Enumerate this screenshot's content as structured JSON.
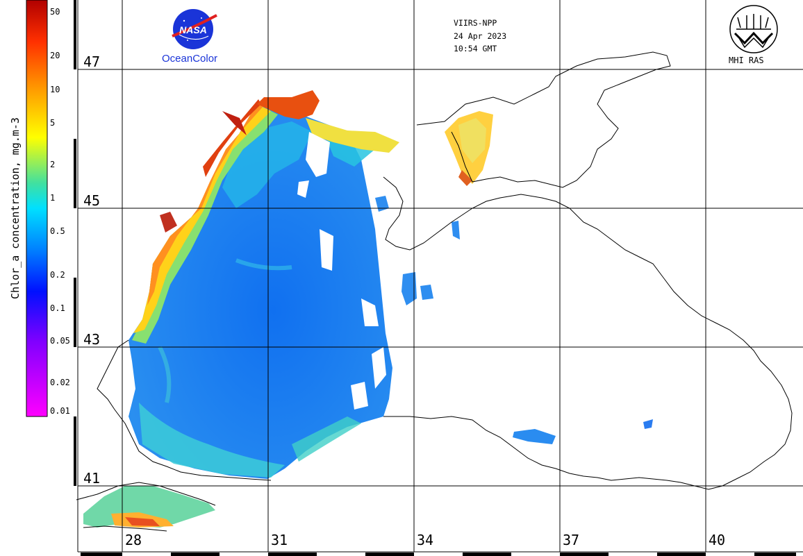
{
  "satellite": {
    "sensor": "VIIRS-NPP",
    "date": "24 Apr 2023",
    "time": "10:54 GMT"
  },
  "logos": {
    "nasa_sub": "OceanColor",
    "mhi": "MHI RAS"
  },
  "colorbar": {
    "title": "Chlor_a concentration, mg.m-3",
    "ticks": [
      "50",
      "20",
      "10",
      "5",
      "2",
      "1",
      "0.5",
      "0.2",
      "0.1",
      "0.05",
      "0.02",
      "0.01"
    ]
  },
  "grid": {
    "lat_labels": [
      "47",
      "45",
      "43",
      "41"
    ],
    "lon_labels": [
      "28",
      "31",
      "34",
      "37",
      "40"
    ]
  },
  "colors": {
    "land": "#ffffff",
    "coast": "#000000",
    "grid": "#000000",
    "nasa_blue": "#1a34d8"
  }
}
